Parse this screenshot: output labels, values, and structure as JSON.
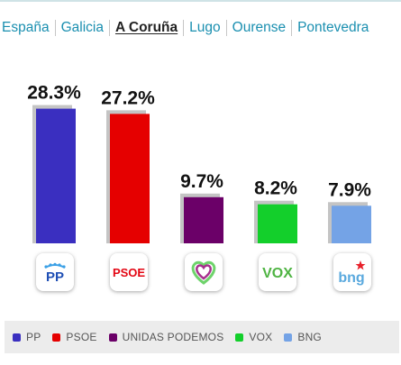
{
  "nav": {
    "tabs": [
      {
        "label": "España",
        "active": false
      },
      {
        "label": "Galicia",
        "active": false
      },
      {
        "label": "A Coruña",
        "active": true
      },
      {
        "label": "Lugo",
        "active": false
      },
      {
        "label": "Ourense",
        "active": false
      },
      {
        "label": "Pontevedra",
        "active": false
      }
    ]
  },
  "chart_data": {
    "type": "bar",
    "categories": [
      "PP",
      "PSOE",
      "UNIDAS PODEMOS",
      "VOX",
      "BNG"
    ],
    "values": [
      28.3,
      27.2,
      9.7,
      8.2,
      7.9
    ],
    "value_labels": [
      "28.3%",
      "27.2%",
      "9.7%",
      "8.2%",
      "7.9%"
    ],
    "colors": [
      "#3a2fc0",
      "#e50000",
      "#6b0068",
      "#13cf2b",
      "#74a3e6"
    ],
    "shadow_color": "#c4c4c4",
    "unit": "%",
    "ylim": [
      0,
      30
    ],
    "grid": false,
    "legend_position": "bottom"
  },
  "logos": [
    {
      "party": "PP",
      "icon": "pp-logo-icon",
      "text": "PP"
    },
    {
      "party": "PSOE",
      "icon": "psoe-logo-icon",
      "text": "PSOE"
    },
    {
      "party": "UNIDAS PODEMOS",
      "icon": "podemos-heart-logo-icon",
      "text": ""
    },
    {
      "party": "VOX",
      "icon": "vox-logo-icon",
      "text": "VOX"
    },
    {
      "party": "BNG",
      "icon": "bng-logo-icon",
      "text": "bng"
    }
  ]
}
